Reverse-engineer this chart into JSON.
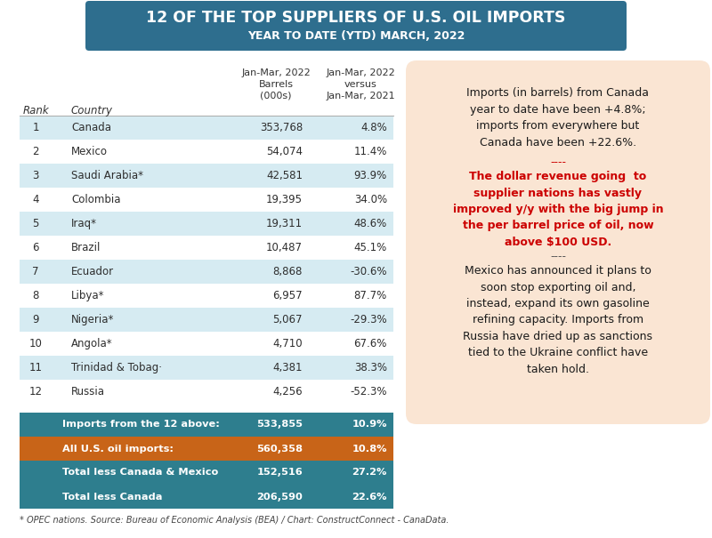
{
  "title_line1": "12 OF THE TOP SUPPLIERS OF U.S. OIL IMPORTS",
  "title_line2": "YEAR TO DATE (YTD) MARCH, 2022",
  "title_bg_color": "#2E6E8E",
  "title_text_color": "#FFFFFF",
  "rows": [
    [
      "1",
      "Canada",
      "353,768",
      "4.8%"
    ],
    [
      "2",
      "Mexico",
      "54,074",
      "11.4%"
    ],
    [
      "3",
      "Saudi Arabia*",
      "42,581",
      "93.9%"
    ],
    [
      "4",
      "Colombia",
      "19,395",
      "34.0%"
    ],
    [
      "5",
      "Iraq*",
      "19,311",
      "48.6%"
    ],
    [
      "6",
      "Brazil",
      "10,487",
      "45.1%"
    ],
    [
      "7",
      "Ecuador",
      "8,868",
      "-30.6%"
    ],
    [
      "8",
      "Libya*",
      "6,957",
      "87.7%"
    ],
    [
      "9",
      "Nigeria*",
      "5,067",
      "-29.3%"
    ],
    [
      "10",
      "Angola*",
      "4,710",
      "67.6%"
    ],
    [
      "11",
      "Trinidad & Tobag·",
      "4,381",
      "38.3%"
    ],
    [
      "12",
      "Russia",
      "4,256",
      "-52.3%"
    ]
  ],
  "summary_rows": [
    [
      "teal",
      "Imports from the 12 above:",
      "533,855",
      "10.9%"
    ],
    [
      "orange",
      "All U.S. oil imports:",
      "560,358",
      "10.8%"
    ],
    [
      "teal",
      "Total less Canada & Mexico",
      "152,516",
      "27.2%"
    ],
    [
      "teal",
      "Total less Canada",
      "206,590",
      "22.6%"
    ]
  ],
  "teal_color": "#2E7E8E",
  "orange_color": "#C86418",
  "alt_row_color": "#D6EBF2",
  "white_row_color": "#FFFFFF",
  "note_text": "* OPEC nations. Source: Bureau of Economic Analysis (BEA) / Chart: ConstructConnect - CanaData.",
  "sidebar_bg": "#FAE5D3",
  "sidebar_text1": "Imports (in barrels) from Canada\nyear to date have been +4.8%;\nimports from everywhere but\nCanada have been +22.6%.",
  "sidebar_sep1": "----",
  "sidebar_text2": "The dollar revenue going  to\nsupplier nations has vastly\nimproved y/y with the big jump in\nthe per barrel price of oil, now\nabove $100 USD.",
  "sidebar_sep2": "----",
  "sidebar_text3": "Mexico has announced it plans to\nsoon stop exporting oil and,\ninstead, expand its own gasoline\nrefining capacity. Imports from\nRussia have dried up as sanctions\ntied to the Ukraine conflict have\ntaken hold.",
  "sidebar_text2_color": "#CC0000",
  "sidebar_text_color": "#1A1A1A"
}
